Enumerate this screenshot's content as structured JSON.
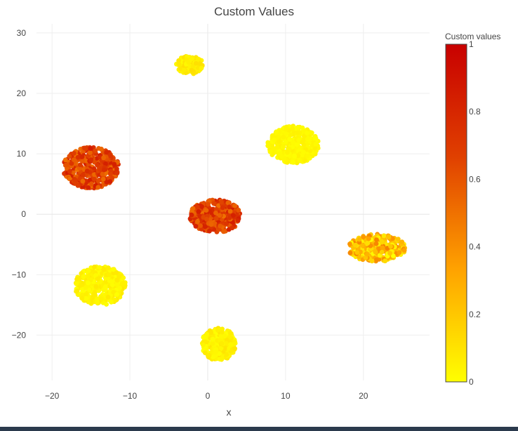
{
  "chart_data": {
    "type": "scatter",
    "title": "Custom Values",
    "xlabel": "x",
    "ylabel": "",
    "xlim": [
      -22,
      28.5
    ],
    "ylim": [
      -27.5,
      31.5
    ],
    "x_ticks": [
      -20,
      -10,
      0,
      10,
      20
    ],
    "y_ticks": [
      -20,
      -10,
      0,
      10,
      20,
      30
    ],
    "x_tick_labels": [
      "−20",
      "−10",
      "0",
      "10",
      "20"
    ],
    "y_tick_labels": [
      "−20",
      "−10",
      "0",
      "10",
      "20",
      "30"
    ],
    "grid": true,
    "colorbar": {
      "title": "Custom values",
      "range": [
        0,
        1
      ],
      "ticks": [
        0,
        0.2,
        0.4,
        0.6,
        0.8,
        1
      ],
      "tick_labels": [
        "0",
        "0.2",
        "0.4",
        "0.6",
        "0.8",
        "1"
      ],
      "colorscale": [
        "#ffff00",
        "#ffa200",
        "#e04000",
        "#c80000"
      ]
    },
    "clusters": [
      {
        "center": [
          -2.3,
          24.7
        ],
        "radius": [
          1.8,
          1.5
        ],
        "count": 140,
        "value_range": [
          0.02,
          0.12
        ]
      },
      {
        "center": [
          11.0,
          11.5
        ],
        "radius": [
          3.3,
          3.1
        ],
        "count": 380,
        "value_range": [
          0.0,
          0.05
        ]
      },
      {
        "center": [
          -15.0,
          7.7
        ],
        "radius": [
          3.6,
          3.4
        ],
        "count": 420,
        "value_range": [
          0.5,
          0.85
        ]
      },
      {
        "center": [
          1.0,
          -0.3
        ],
        "radius": [
          3.3,
          2.7
        ],
        "count": 380,
        "value_range": [
          0.5,
          0.85
        ]
      },
      {
        "center": [
          21.7,
          -5.6
        ],
        "radius": [
          3.7,
          2.3
        ],
        "count": 300,
        "value_range": [
          0.0,
          0.45
        ]
      },
      {
        "center": [
          -13.8,
          -11.8
        ],
        "radius": [
          3.3,
          3.2
        ],
        "count": 380,
        "value_range": [
          0.0,
          0.08
        ]
      },
      {
        "center": [
          1.4,
          -21.5
        ],
        "radius": [
          2.2,
          2.7
        ],
        "count": 300,
        "value_range": [
          0.0,
          0.1
        ]
      }
    ]
  }
}
